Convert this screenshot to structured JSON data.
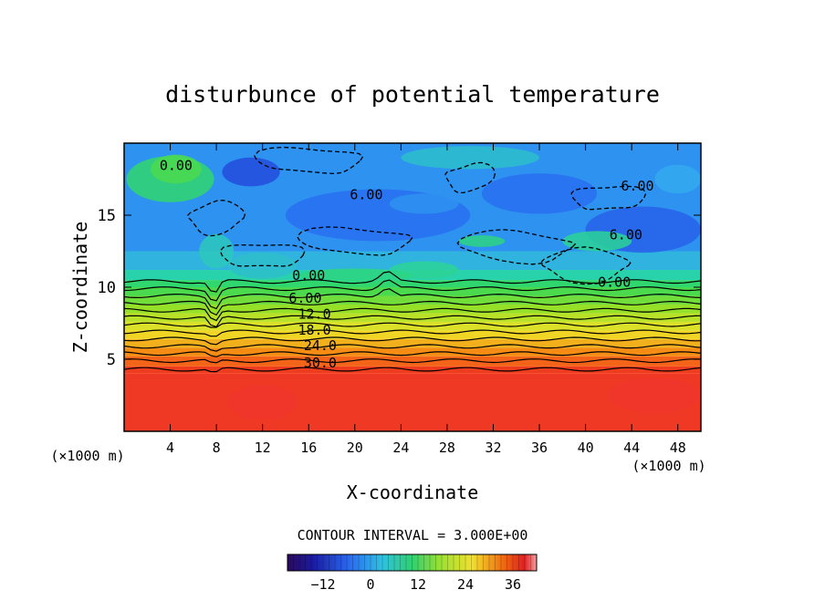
{
  "chart_data": {
    "type": "heatmap",
    "title": "disturbunce of potential temperature",
    "xlabel": "X-coordinate",
    "ylabel": "Z-coordinate",
    "x_unit": "(×1000 m)",
    "xlim": [
      0,
      50
    ],
    "ylim": [
      0,
      20
    ],
    "x_ticks": [
      4,
      8,
      12,
      16,
      20,
      24,
      28,
      32,
      36,
      40,
      44,
      48
    ],
    "y_ticks": [
      5,
      10,
      15
    ],
    "contour_interval_text": "CONTOUR INTERVAL = 3.000E+00",
    "contour_interval": 3.0,
    "colorbar": {
      "range": [
        -21,
        42
      ],
      "ticks": [
        -12,
        0,
        12,
        24,
        36
      ]
    },
    "level_labels": [
      {
        "text": "0.00",
        "x": 4.5,
        "z": 18.5
      },
      {
        "text": "6.00",
        "x": 21,
        "z": 16.5
      },
      {
        "text": "6.00",
        "x": 44.5,
        "z": 17.1
      },
      {
        "text": "6.00",
        "x": 43.5,
        "z": 13.7
      },
      {
        "text": "0.00",
        "x": 16,
        "z": 10.9
      },
      {
        "text": "0.00",
        "x": 42.5,
        "z": 10.4
      },
      {
        "text": "6.00",
        "x": 15.7,
        "z": 9.3
      },
      {
        "text": "12.0",
        "x": 16.5,
        "z": 8.2
      },
      {
        "text": "18.0",
        "x": 16.5,
        "z": 7.1
      },
      {
        "text": "24.0",
        "x": 17,
        "z": 6.0
      },
      {
        "text": "30.0",
        "x": 17,
        "z": 4.8
      }
    ],
    "colors": {
      "low": "#2040e0",
      "mid": "#30c060",
      "high": "#f03030"
    }
  }
}
